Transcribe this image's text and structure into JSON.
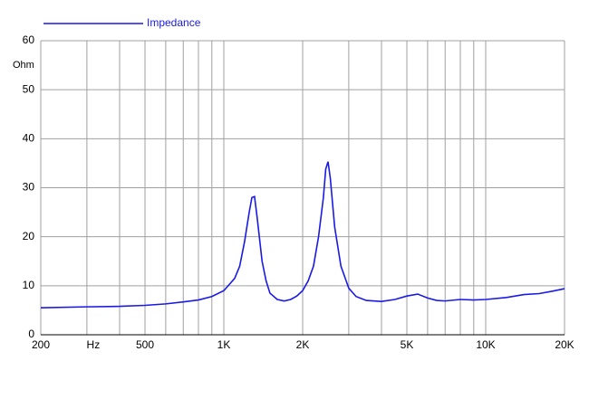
{
  "chart_data": {
    "type": "line",
    "x": [
      200,
      300,
      400,
      500,
      600,
      700,
      800,
      900,
      1000,
      1100,
      1150,
      1200,
      1250,
      1280,
      1310,
      1340,
      1400,
      1450,
      1500,
      1600,
      1700,
      1800,
      1900,
      2000,
      2100,
      2200,
      2300,
      2400,
      2450,
      2500,
      2550,
      2650,
      2800,
      3000,
      3200,
      3500,
      4000,
      4500,
      5000,
      5500,
      6000,
      6500,
      7000,
      8000,
      9000,
      10000,
      12000,
      14000,
      16000,
      18000,
      20000
    ],
    "series": [
      {
        "name": "Impedance",
        "color": "#1a1ae6",
        "values": [
          5.5,
          5.7,
          5.8,
          6.0,
          6.3,
          6.7,
          7.1,
          7.8,
          9.0,
          11.5,
          14,
          19,
          25,
          28,
          28.2,
          24,
          15,
          11,
          8.5,
          7.2,
          6.9,
          7.2,
          7.9,
          9.0,
          11,
          14,
          20,
          28,
          33.8,
          35.3,
          32,
          22,
          14,
          9.5,
          7.8,
          7.0,
          6.8,
          7.2,
          7.9,
          8.3,
          7.5,
          7.0,
          6.9,
          7.2,
          7.1,
          7.2,
          7.6,
          8.2,
          8.4,
          8.9,
          9.4
        ]
      }
    ],
    "xscale": "log",
    "xlim": [
      200,
      20000
    ],
    "xticks": [
      200,
      {
        "value": 300,
        "label": "Hz"
      },
      500,
      {
        "value": 1000,
        "label": "1K"
      },
      {
        "value": 2000,
        "label": "2K"
      },
      {
        "value": 5000,
        "label": "5K"
      },
      {
        "value": 10000,
        "label": "10K"
      },
      {
        "value": 20000,
        "label": "20K"
      }
    ],
    "xgrid_minor": [
      400,
      600,
      700,
      800,
      900,
      3000,
      4000,
      6000,
      7000,
      8000,
      9000
    ],
    "ylim": [
      0,
      60
    ],
    "yticks": [
      0,
      10,
      20,
      30,
      40,
      50,
      60
    ],
    "ylabel": "Ohm",
    "grid": true
  }
}
